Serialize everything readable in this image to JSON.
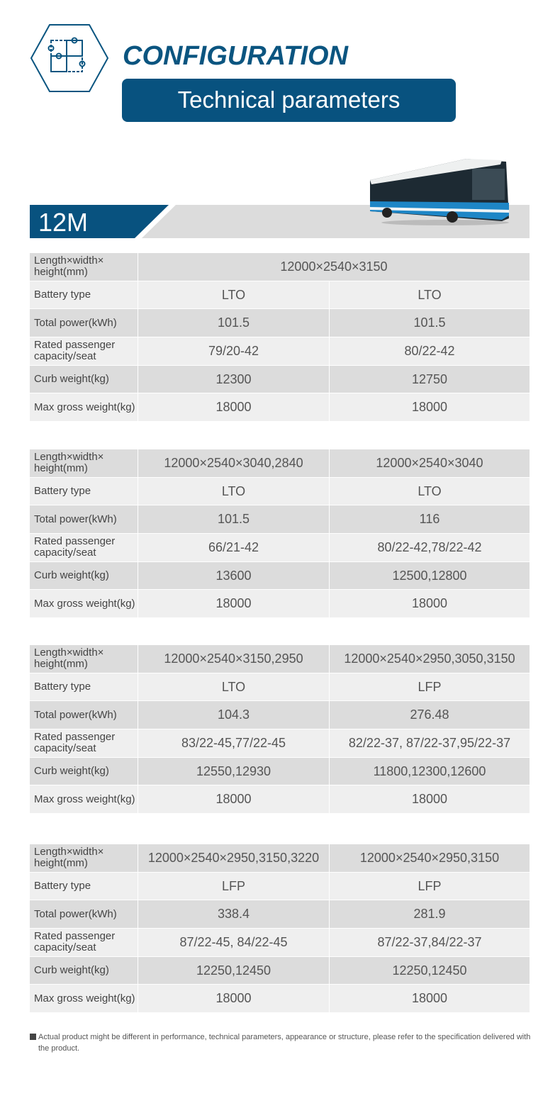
{
  "header": {
    "title": "CONFIGURATION",
    "subtitle": "Technical parameters",
    "icon": "puzzle-icon"
  },
  "section": {
    "label": "12M"
  },
  "colors": {
    "brand": "#08527f",
    "row_dark": "#dcdcdc",
    "row_light": "#efefef"
  },
  "row_labels": [
    "Length×width× height(mm)",
    "Battery type",
    "Total power(kWh)",
    "Rated passenger capacity/seat",
    "Curb weight(kg)",
    "Max gross weight(kg)"
  ],
  "tables": [
    {
      "rows": [
        [
          "12000×2540×3150"
        ],
        [
          "LTO",
          "LTO"
        ],
        [
          "101.5",
          "101.5"
        ],
        [
          "79/20-42",
          "80/22-42"
        ],
        [
          "12300",
          "12750"
        ],
        [
          "18000",
          "18000"
        ]
      ]
    },
    {
      "rows": [
        [
          "12000×2540×3040,2840",
          "12000×2540×3040"
        ],
        [
          "LTO",
          "LTO"
        ],
        [
          "101.5",
          "116"
        ],
        [
          "66/21-42",
          "80/22-42,78/22-42"
        ],
        [
          "13600",
          "12500,12800"
        ],
        [
          "18000",
          "18000"
        ]
      ]
    },
    {
      "rows": [
        [
          "12000×2540×3150,2950",
          "12000×2540×2950,3050,3150"
        ],
        [
          "LTO",
          "LFP"
        ],
        [
          "104.3",
          "276.48"
        ],
        [
          "83/22-45,77/22-45",
          "82/22-37, 87/22-37,95/22-37"
        ],
        [
          "12550,12930",
          "11800,12300,12600"
        ],
        [
          "18000",
          "18000"
        ]
      ]
    },
    {
      "rows": [
        [
          "12000×2540×2950,3150,3220",
          "12000×2540×2950,3150"
        ],
        [
          "LFP",
          "LFP"
        ],
        [
          "338.4",
          "281.9"
        ],
        [
          "87/22-45, 84/22-45",
          "87/22-37,84/22-37"
        ],
        [
          "12250,12450",
          "12250,12450"
        ],
        [
          "18000",
          "18000"
        ]
      ]
    }
  ],
  "footnote": "Actual product might be different in performance, technical parameters, appearance or structure, please refer to the specification delivered with the product."
}
